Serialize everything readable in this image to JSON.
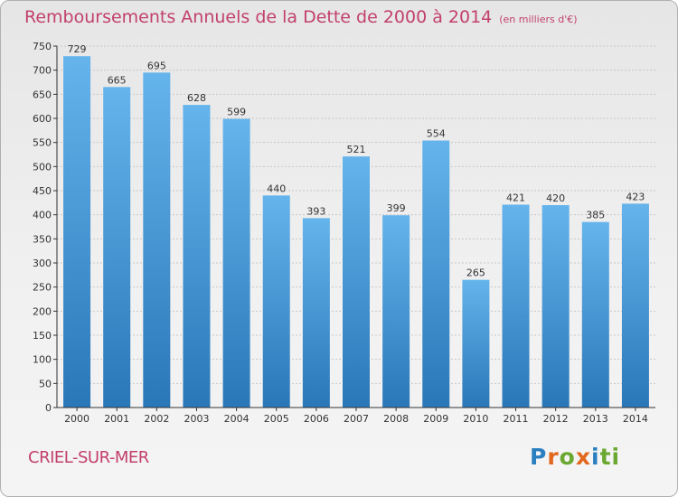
{
  "title": "Remboursements Annuels de la Dette de 2000 à 2014",
  "unit": "(en milliers d'€)",
  "commune": "CRIEL-SUR-MER",
  "logo": {
    "text": "Proxiti",
    "letter_colors": [
      "#2a7fc0",
      "#e2681e",
      "#6aa832",
      "#e2681e",
      "#2a7fc0",
      "#6aa832",
      "#6aa832"
    ]
  },
  "colors": {
    "bar_top": "#65b4ec",
    "bar_bottom": "#2a77b8",
    "title": "#c2406c",
    "axis": "#333333",
    "grid": "#c8c8c8"
  },
  "chart_data": {
    "type": "bar",
    "categories": [
      "2000",
      "2001",
      "2002",
      "2003",
      "2004",
      "2005",
      "2006",
      "2007",
      "2008",
      "2009",
      "2010",
      "2011",
      "2012",
      "2013",
      "2014"
    ],
    "values": [
      729,
      665,
      695,
      628,
      599,
      440,
      393,
      521,
      399,
      554,
      265,
      421,
      420,
      385,
      423
    ],
    "ylim": [
      0,
      750
    ],
    "yticks": [
      0,
      50,
      100,
      150,
      200,
      250,
      300,
      350,
      400,
      450,
      500,
      550,
      600,
      650,
      700,
      750
    ],
    "grid": true,
    "data_labels": true
  }
}
